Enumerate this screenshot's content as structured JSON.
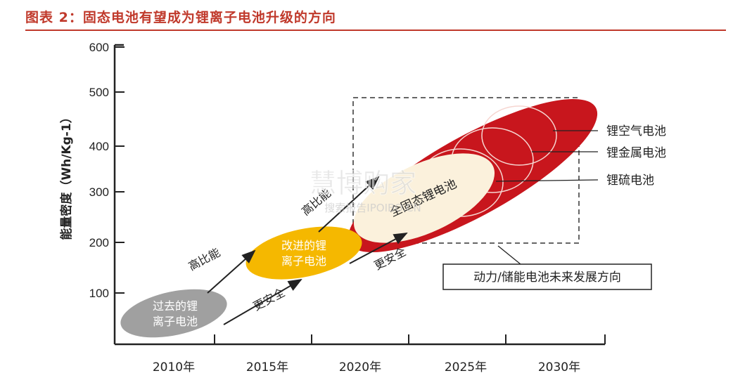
{
  "figure_title": "图表 2：固态电池有望成为锂离子电池升级的方向",
  "watermark": {
    "main": "慧博购家",
    "sub": "搜索报告IPOIBO.CN"
  },
  "colors": {
    "title_red": "#c0392b",
    "past_gray": "#a0a0a0",
    "improved_orange": "#f5b800",
    "next_gen_red": "#c8161d",
    "solid_state_cream": "#fbf1dc"
  },
  "chart_data": {
    "type": "diagram",
    "y_axis_label": "能量密度（Wh/Kg-1）",
    "y_ticks": [
      100,
      200,
      300,
      400,
      500,
      600
    ],
    "y_range": [
      0,
      600
    ],
    "x_ticks": [
      "2010年",
      "2015年",
      "2020年",
      "2025年",
      "2030年"
    ],
    "stages": [
      {
        "label_line1": "过去的锂",
        "label_line2": "离子电池"
      },
      {
        "label_line1": "改进的锂",
        "label_line2": "离子电池"
      },
      {
        "label": "全固态锂电池"
      }
    ],
    "callouts": [
      "锂空气电池",
      "锂金属电池",
      "锂硫电池"
    ],
    "arrow_labels": {
      "energy_1": "高比能",
      "safety_1": "更安全",
      "energy_2": "高比能",
      "safety_2": "更安全"
    },
    "box_label": "动力/储能电池未来发展方向"
  }
}
